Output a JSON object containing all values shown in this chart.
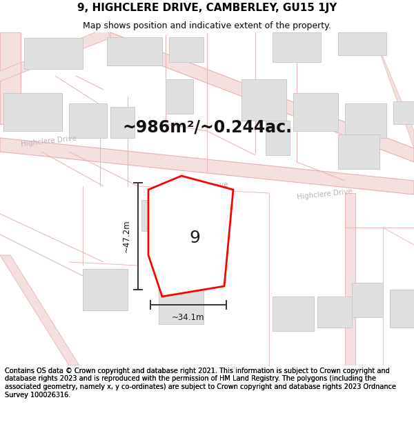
{
  "title": "9, HIGHCLERE DRIVE, CAMBERLEY, GU15 1JY",
  "subtitle": "Map shows position and indicative extent of the property.",
  "footer": "Contains OS data © Crown copyright and database right 2021. This information is subject to Crown copyright and database rights 2023 and is reproduced with the permission of HM Land Registry. The polygons (including the associated geometry, namely x, y co-ordinates) are subject to Crown copyright and database rights 2023 Ordnance Survey 100026316.",
  "area_label": "~986m²/~0.244ac.",
  "width_label": "~34.1m",
  "height_label": "~47.2m",
  "property_number": "9",
  "map_bg": "#ffffff",
  "road_line_color": "#e8b0b0",
  "road_fill_color": "#f5e0e0",
  "building_face_color": "#e0e0e0",
  "building_edge_color": "#c8c8c8",
  "property_edge_color": "#ff0000",
  "property_fill_color": "#ffffff",
  "dim_color": "#333333",
  "road_label_color": "#c0b0b0",
  "title_fontsize": 11,
  "subtitle_fontsize": 9,
  "footer_fontsize": 7.0,
  "area_fontsize": 17,
  "dim_fontsize": 8.5,
  "num_fontsize": 18,
  "road_label_fontsize": 7.5
}
